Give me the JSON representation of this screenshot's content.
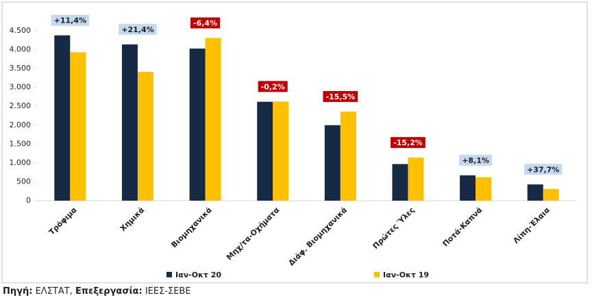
{
  "chart_data": {
    "type": "bar",
    "categories": [
      "Τρόφιμα",
      "Χημικά",
      "Βιομηχανικά",
      "Μηχ/τα-Οχήματα",
      "Διάφ. Βιομηχανικά",
      "Πρώτες Ύλες",
      "Ποτά-Καπνά",
      "Λίπη-Έλαια"
    ],
    "series": [
      {
        "name": "Ιαν-Οκτ 20",
        "color": "#172a45",
        "values": [
          4380,
          4140,
          4030,
          2620,
          2000,
          970,
          670,
          430
        ]
      },
      {
        "name": "Ιαν-Οκτ 19",
        "color": "#ffc000",
        "values": [
          3930,
          3410,
          4310,
          2625,
          2360,
          1140,
          620,
          310
        ]
      }
    ],
    "annotations": [
      {
        "label": "+11,4%",
        "color": "#c5d9f1",
        "text_color": "#1f1f1f"
      },
      {
        "label": "+21,4%",
        "color": "#c5d9f1",
        "text_color": "#1f1f1f"
      },
      {
        "label": "-6,4%",
        "color": "#c00000",
        "text_color": "#ffffff"
      },
      {
        "label": "-0,2%",
        "color": "#c00000",
        "text_color": "#ffffff"
      },
      {
        "label": "-15,5%",
        "color": "#c00000",
        "text_color": "#ffffff"
      },
      {
        "label": "-15,2%",
        "color": "#c00000",
        "text_color": "#ffffff"
      },
      {
        "label": "+8,1%",
        "color": "#c5d9f1",
        "text_color": "#1f1f1f"
      },
      {
        "label": "+37,7%",
        "color": "#c5d9f1",
        "text_color": "#1f1f1f"
      }
    ],
    "ylim": [
      0,
      4500
    ],
    "yticks": [
      0,
      500,
      {
        "value": 1000,
        "label": "1.000"
      },
      {
        "value": 1500,
        "label": "1.500"
      },
      {
        "value": 2000,
        "label": "2.000"
      },
      {
        "value": 2500,
        "label": "2.500"
      },
      {
        "value": 3000,
        "label": "3.000"
      },
      {
        "value": 3500,
        "label": "3.500"
      },
      {
        "value": 4000,
        "label": "4.000"
      },
      {
        "value": 4500,
        "label": "4.500"
      }
    ],
    "legend": "bottom",
    "grid": false
  },
  "source": [
    {
      "text": "Πηγή:",
      "bold": true
    },
    {
      "text": " ΕΛΣΤΑΤ, ",
      "bold": false
    },
    {
      "text": "Επεξεργασία:",
      "bold": true
    },
    {
      "text": " ΙΕΕΣ-ΣΕΒΕ",
      "bold": false
    }
  ]
}
